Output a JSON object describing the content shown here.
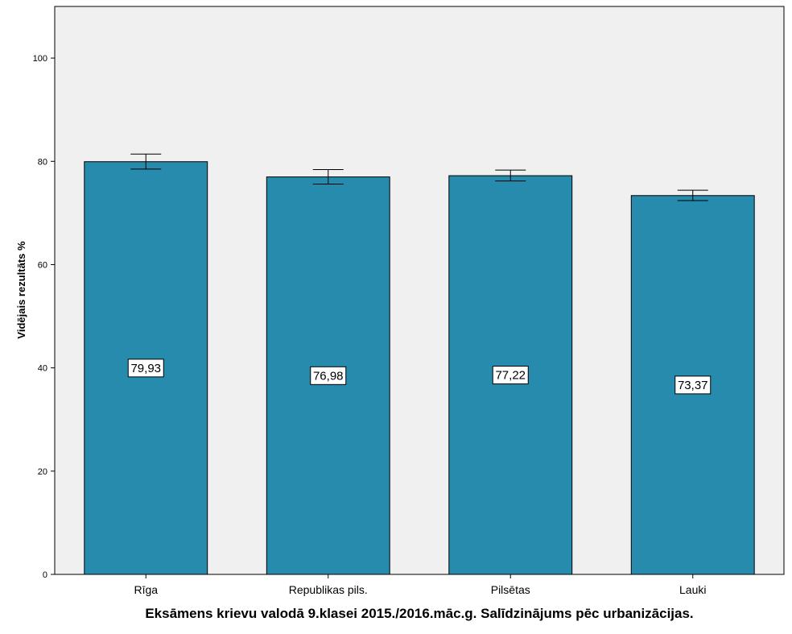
{
  "chart_data": {
    "type": "bar",
    "categories": [
      "Rīga",
      "Republikas pils.",
      "Pilsētas",
      "Lauki"
    ],
    "values": [
      79.93,
      76.98,
      77.22,
      73.37
    ],
    "value_labels": [
      "79,93",
      "76,98",
      "77,22",
      "73,37"
    ],
    "error_bars": [
      {
        "low": 78.5,
        "high": 81.4
      },
      {
        "low": 75.6,
        "high": 78.4
      },
      {
        "low": 76.2,
        "high": 78.3
      },
      {
        "low": 72.4,
        "high": 74.4
      }
    ],
    "ylabel": "Vidējais rezultāts %",
    "xlabel": "Eksāmens krievu valodā 9.klasei 2015./2016.māc.g. Salīdzinājums pēc urbanizācijas.",
    "ylim": [
      0,
      110
    ],
    "yticks": [
      0,
      20,
      40,
      60,
      80,
      100
    ],
    "grid": false,
    "colors": {
      "bar": "#268BAD",
      "plot_background": "#F0F0F0",
      "axis": "#000000",
      "label_box": "#FFFFFF"
    }
  }
}
